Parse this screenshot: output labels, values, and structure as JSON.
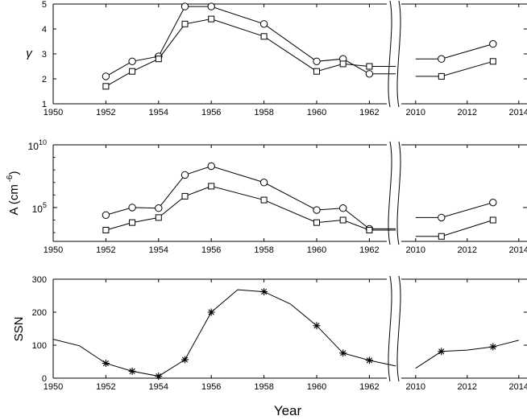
{
  "chart_data": [
    {
      "type": "line",
      "panel": "top",
      "ylabel": "γ",
      "xlabel": "",
      "scale": "linear",
      "ylim": [
        1,
        5
      ],
      "yticks": [
        "1",
        "2",
        "3",
        "4",
        "5"
      ],
      "axis_break": "between 1962 and 2010",
      "xticks_left": [
        "1950",
        "1952",
        "1954",
        "1956",
        "1958",
        "1960",
        "1962"
      ],
      "xticks_right": [
        "2010",
        "2012",
        "2014"
      ],
      "series": [
        {
          "marker": "circle",
          "left": {
            "x": [
              1952,
              1953,
              1954,
              1955,
              1956,
              1958,
              1960,
              1961,
              1962,
              1963
            ],
            "y": [
              2.1,
              2.7,
              2.9,
              4.9,
              4.9,
              4.2,
              2.7,
              2.8,
              2.2,
              2.2
            ],
            "marked": [
              true,
              true,
              true,
              true,
              true,
              true,
              true,
              true,
              true,
              false
            ]
          },
          "right": {
            "x": [
              2010,
              2011,
              2013
            ],
            "y": [
              2.8,
              2.8,
              3.4
            ],
            "marked": [
              false,
              true,
              true
            ]
          }
        },
        {
          "marker": "square",
          "left": {
            "x": [
              1952,
              1953,
              1954,
              1955,
              1956,
              1958,
              1960,
              1961,
              1962,
              1963
            ],
            "y": [
              1.7,
              2.3,
              2.8,
              4.2,
              4.4,
              3.7,
              2.3,
              2.6,
              2.5,
              2.5
            ],
            "marked": [
              true,
              true,
              true,
              true,
              true,
              true,
              true,
              true,
              true,
              false
            ]
          },
          "right": {
            "x": [
              2010,
              2011,
              2013
            ],
            "y": [
              2.1,
              2.1,
              2.7
            ],
            "marked": [
              false,
              true,
              true
            ]
          }
        }
      ]
    },
    {
      "type": "line",
      "panel": "middle",
      "ylabel": "A (cm",
      "ylabel_exp": "-6",
      "ylabel_close": ")",
      "scale": "log",
      "ylim_log10": [
        2.3,
        10
      ],
      "yticks": [
        {
          "base": "10",
          "exp": "5",
          "log10": 5
        },
        {
          "base": "10",
          "exp": "10",
          "log10": 10
        }
      ],
      "xticks_left": [
        "1950",
        "1952",
        "1954",
        "1956",
        "1958",
        "1960",
        "1962"
      ],
      "xticks_right": [
        "2010",
        "2012",
        "2014"
      ],
      "series": [
        {
          "marker": "circle",
          "left": {
            "x": [
              1952,
              1953,
              1954,
              1955,
              1956,
              1958,
              1960,
              1961,
              1962,
              1963
            ],
            "y_log10": [
              4.4,
              5.0,
              4.95,
              7.6,
              8.3,
              7.0,
              4.8,
              4.95,
              3.3,
              3.3
            ],
            "marked": [
              true,
              true,
              true,
              true,
              true,
              true,
              true,
              true,
              true,
              false
            ]
          },
          "right": {
            "x": [
              2010,
              2011,
              2013
            ],
            "y_log10": [
              4.2,
              4.2,
              5.4
            ],
            "marked": [
              false,
              true,
              true
            ]
          }
        },
        {
          "marker": "square",
          "left": {
            "x": [
              1952,
              1953,
              1954,
              1955,
              1956,
              1958,
              1960,
              1961,
              1962,
              1963
            ],
            "y_log10": [
              3.2,
              3.8,
              4.2,
              5.9,
              6.7,
              5.6,
              3.8,
              4.0,
              3.2,
              3.2
            ],
            "marked": [
              true,
              true,
              true,
              true,
              true,
              true,
              true,
              true,
              true,
              false
            ]
          },
          "right": {
            "x": [
              2010,
              2011,
              2013
            ],
            "y_log10": [
              2.7,
              2.7,
              4.0
            ],
            "marked": [
              false,
              true,
              true
            ]
          }
        }
      ]
    },
    {
      "type": "line",
      "panel": "bottom",
      "ylabel": "SSN",
      "xlabel": "Year",
      "scale": "linear",
      "ylim": [
        0,
        300
      ],
      "yticks": [
        "0",
        "100",
        "200",
        "300"
      ],
      "xticks_left": [
        "1950",
        "1952",
        "1954",
        "1956",
        "1958",
        "1960",
        "1962"
      ],
      "xticks_right": [
        "2010",
        "2012",
        "2014"
      ],
      "series": [
        {
          "marker": "asterisk",
          "left": {
            "x": [
              1950,
              1951,
              1952,
              1953,
              1954,
              1955,
              1956,
              1957,
              1958,
              1959,
              1960,
              1961,
              1962,
              1963
            ],
            "y": [
              118,
              98,
              45,
              21,
              6,
              56,
              200,
              268,
              262,
              225,
              159,
              76,
              54,
              37
            ],
            "marked": [
              false,
              false,
              true,
              true,
              true,
              true,
              true,
              false,
              true,
              false,
              true,
              true,
              true,
              false
            ]
          },
          "right": {
            "x": [
              2010,
              2011,
              2012,
              2013,
              2014
            ],
            "y": [
              30,
              81,
              85,
              95,
              115
            ],
            "marked": [
              false,
              true,
              false,
              true,
              false
            ]
          }
        }
      ]
    }
  ]
}
